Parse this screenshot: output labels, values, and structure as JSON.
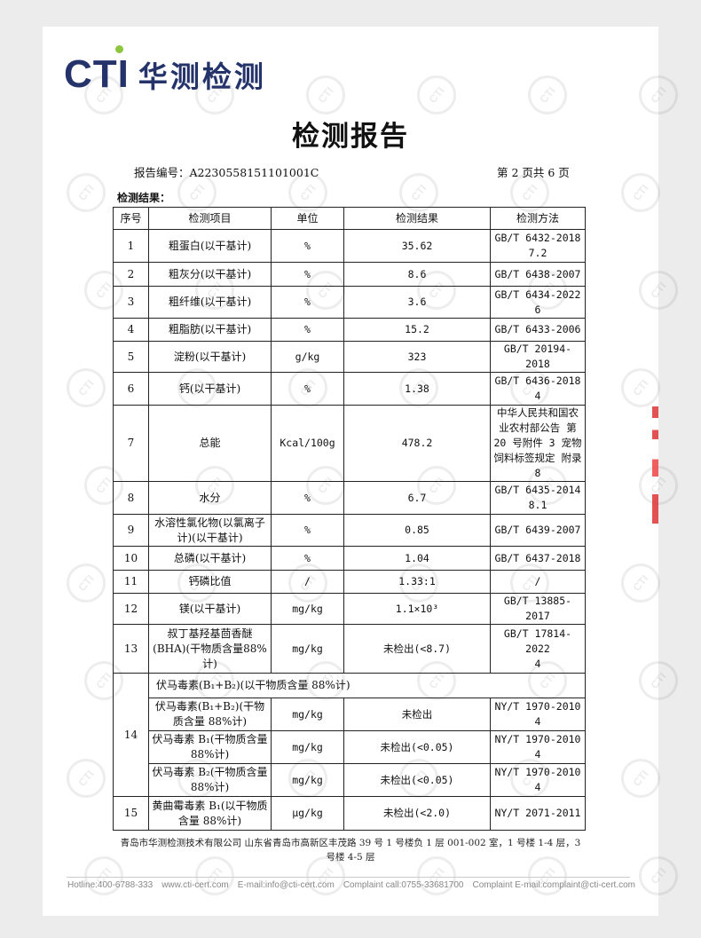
{
  "logo": {
    "brand": "CTI",
    "name_cn": "华测检测"
  },
  "title": "检测报告",
  "report_no": "报告编号：A2230558151101001C",
  "page_info": "第 2 页共 6 页",
  "results_label": "检测结果：",
  "table": {
    "headers": [
      "序号",
      "检测项目",
      "单位",
      "检测结果",
      "检测方法"
    ],
    "rows": [
      {
        "no": "1",
        "item": "粗蛋白(以干基计)",
        "unit": "%",
        "result": "35.62",
        "method": "GB/T 6432-2018\n7.2"
      },
      {
        "no": "2",
        "item": "粗灰分(以干基计)",
        "unit": "%",
        "result": "8.6",
        "method": "GB/T 6438-2007"
      },
      {
        "no": "3",
        "item": "粗纤维(以干基计)",
        "unit": "%",
        "result": "3.6",
        "method": "GB/T 6434-2022\n6"
      },
      {
        "no": "4",
        "item": "粗脂肪(以干基计)",
        "unit": "%",
        "result": "15.2",
        "method": "GB/T 6433-2006"
      },
      {
        "no": "5",
        "item": "淀粉(以干基计)",
        "unit": "g/kg",
        "result": "323",
        "method": "GB/T 20194-2018"
      },
      {
        "no": "6",
        "item": "钙(以干基计)",
        "unit": "%",
        "result": "1.38",
        "method": "GB/T 6436-2018\n4"
      },
      {
        "no": "7",
        "item": "总能",
        "unit": "Kcal/100g",
        "result": "478.2",
        "method": "中华人民共和国农业农村部公告 第 20 号附件 3 宠物饲料标签规定 附录 8"
      },
      {
        "no": "8",
        "item": "水分",
        "unit": "%",
        "result": "6.7",
        "method": "GB/T 6435-2014\n8.1"
      },
      {
        "no": "9",
        "item": "水溶性氯化物(以氯离子计)(以干基计)",
        "unit": "%",
        "result": "0.85",
        "method": "GB/T 6439-2007"
      },
      {
        "no": "10",
        "item": "总磷(以干基计)",
        "unit": "%",
        "result": "1.04",
        "method": "GB/T 6437-2018"
      },
      {
        "no": "11",
        "item": "钙磷比值",
        "unit": "/",
        "result": "1.33:1",
        "method": "/"
      },
      {
        "no": "12",
        "item": "镁(以干基计)",
        "unit": "mg/kg",
        "result": "1.1×10³",
        "method": "GB/T 13885-2017"
      },
      {
        "no": "13",
        "item": "叔丁基羟基茴香醚(BHA)(干物质含量88%计)",
        "unit": "mg/kg",
        "result": "未检出(<8.7)",
        "method": "GB/T 17814-2022\n4"
      }
    ],
    "row14": {
      "no": "14",
      "group": "伏马毒素(B₁+B₂)(以干物质含量 88%计)",
      "sub": [
        {
          "item": "伏马毒素(B₁+B₂)(干物质含量 88%计)",
          "unit": "mg/kg",
          "result": "未检出",
          "method": "NY/T 1970-2010\n4"
        },
        {
          "item": "伏马毒素 B₁(干物质含量 88%计)",
          "unit": "mg/kg",
          "result": "未检出(<0.05)",
          "method": "NY/T 1970-2010\n4"
        },
        {
          "item": "伏马毒素 B₂(干物质含量 88%计)",
          "unit": "mg/kg",
          "result": "未检出(<0.05)",
          "method": "NY/T 1970-2010\n4"
        }
      ]
    },
    "row15": {
      "no": "15",
      "item": "黄曲霉毒素 B₁(以干物质含量 88%计)",
      "unit": "μg/kg",
      "result": "未检出(<2.0)",
      "method": "NY/T 2071-2011"
    }
  },
  "footer": {
    "address": "青岛市华测检测技术有限公司 山东省青岛市高新区丰茂路 39 号 1 号楼负 1 层 001-002 室，1 号楼 1-4 层，3 号楼 4-5 层",
    "contacts": [
      "Hotline:400-6788-333",
      "www.cti-cert.com",
      "E-mail:info@cti-cert.com",
      "Complaint call:0755-33681700",
      "Complaint E-mail:complaint@cti-cert.com"
    ]
  },
  "watermark": "CTI"
}
